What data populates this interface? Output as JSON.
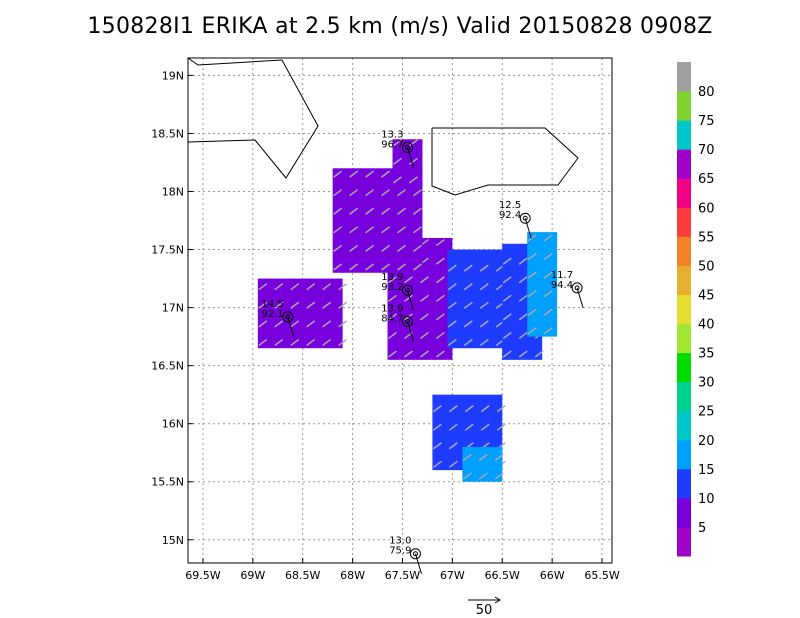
{
  "chart_data": {
    "type": "heatmap",
    "title": "150828I1 ERIKA at 2.5 km (m/s) Valid 20150828 0908Z",
    "xlim": [
      -69.65,
      -65.4
    ],
    "ylim": [
      14.8,
      19.15
    ],
    "x_ticks": [
      {
        "value": -69.5,
        "label": "69.5W"
      },
      {
        "value": -69.0,
        "label": "69W"
      },
      {
        "value": -68.5,
        "label": "68.5W"
      },
      {
        "value": -68.0,
        "label": "68W"
      },
      {
        "value": -67.5,
        "label": "67.5W"
      },
      {
        "value": -67.0,
        "label": "67W"
      },
      {
        "value": -66.5,
        "label": "66.5W"
      },
      {
        "value": -66.0,
        "label": "66W"
      },
      {
        "value": -65.5,
        "label": "65.5W"
      }
    ],
    "y_ticks": [
      {
        "value": 15.0,
        "label": "15N"
      },
      {
        "value": 15.5,
        "label": "15.5N"
      },
      {
        "value": 16.0,
        "label": "16N"
      },
      {
        "value": 16.5,
        "label": "16.5N"
      },
      {
        "value": 17.0,
        "label": "17N"
      },
      {
        "value": 17.5,
        "label": "17.5N"
      },
      {
        "value": 18.0,
        "label": "18N"
      },
      {
        "value": 18.5,
        "label": "18.5N"
      },
      {
        "value": 19.0,
        "label": "19N"
      }
    ],
    "grid": true,
    "colorbar": {
      "labels": [
        "5",
        "10",
        "15",
        "20",
        "25",
        "30",
        "35",
        "40",
        "45",
        "50",
        "55",
        "60",
        "65",
        "70",
        "75",
        "80"
      ],
      "colors": [
        "#a000c8",
        "#7800dc",
        "#1e3cff",
        "#00a0ff",
        "#00c8c8",
        "#00d28c",
        "#00dc00",
        "#a0e632",
        "#e6dc32",
        "#e6af2d",
        "#f08228",
        "#fa3c3c",
        "#f00082",
        "#a000c8",
        "#00c8c8",
        "#82d232",
        "#a0a0a0"
      ]
    },
    "wind_fields": [
      {
        "x": [
          -68.95,
          -68.1
        ],
        "y": [
          16.65,
          17.25
        ],
        "speed": 5
      },
      {
        "x": [
          -67.65,
          -67.0
        ],
        "y": [
          16.55,
          17.6
        ],
        "speed": 5
      },
      {
        "x": [
          -68.2,
          -67.3
        ],
        "y": [
          17.3,
          18.2
        ],
        "speed": 8
      },
      {
        "x": [
          -67.6,
          -67.3
        ],
        "y": [
          18.05,
          18.45
        ],
        "speed": 8
      },
      {
        "x": [
          -67.05,
          -66.4
        ],
        "y": [
          16.65,
          17.5
        ],
        "speed": 11
      },
      {
        "x": [
          -66.5,
          -66.1
        ],
        "y": [
          16.55,
          17.55
        ],
        "speed": 14
      },
      {
        "x": [
          -66.25,
          -65.95
        ],
        "y": [
          16.75,
          17.65
        ],
        "speed": 17
      },
      {
        "x": [
          -67.2,
          -66.5
        ],
        "y": [
          15.6,
          16.25
        ],
        "speed": 11
      },
      {
        "x": [
          -66.9,
          -66.5
        ],
        "y": [
          15.5,
          15.8
        ],
        "speed": 17
      }
    ],
    "observations": [
      {
        "x": -67.45,
        "y": 18.38,
        "line1": "13.3",
        "line2": "96.7"
      },
      {
        "x": -66.27,
        "y": 17.77,
        "line1": "12.5",
        "line2": "92.4"
      },
      {
        "x": -67.45,
        "y": 17.15,
        "line1": "13.9",
        "line2": "93.2"
      },
      {
        "x": -65.75,
        "y": 17.17,
        "line1": "11.7",
        "line2": "94.4"
      },
      {
        "x": -68.65,
        "y": 16.92,
        "line1": "14.5",
        "line2": "92.1"
      },
      {
        "x": -67.45,
        "y": 16.88,
        "line1": "13.9",
        "line2": "84.7"
      },
      {
        "x": -67.37,
        "y": 14.88,
        "line1": "13.0",
        "line2": "75.9"
      }
    ],
    "reference_vector_label": "50"
  }
}
